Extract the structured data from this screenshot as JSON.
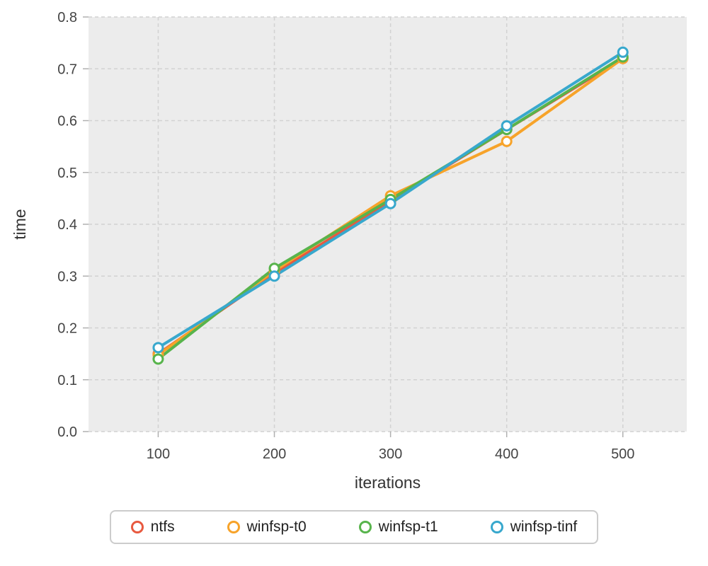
{
  "chart_data": {
    "type": "line",
    "title": "",
    "xlabel": "iterations",
    "ylabel": "time",
    "x": [
      100,
      200,
      300,
      400,
      500
    ],
    "xlim": [
      40,
      555
    ],
    "ylim": [
      0,
      0.8
    ],
    "x_ticks": [
      100,
      200,
      300,
      400,
      500
    ],
    "x_tick_labels": [
      "100",
      "200",
      "300",
      "400",
      "500"
    ],
    "y_ticks": [
      0.0,
      0.1,
      0.2,
      0.3,
      0.4,
      0.5,
      0.6,
      0.7,
      0.8
    ],
    "y_tick_labels": [
      "0.0",
      "0.1",
      "0.2",
      "0.3",
      "0.4",
      "0.5",
      "0.6",
      "0.7",
      "0.8"
    ],
    "grid": true,
    "grid_style": "dashed",
    "legend_position": "bottom",
    "plot_bg": "#ececec",
    "grid_color": "#d2d2d2",
    "tick_color": "#b0b0b0",
    "marker_fill": "#ffffff",
    "series": [
      {
        "name": "ntfs",
        "color": "#e8593f",
        "values": [
          0.15,
          0.305,
          0.445,
          0.583,
          0.72
        ]
      },
      {
        "name": "winfsp-t0",
        "color": "#f7a32a",
        "values": [
          0.148,
          0.31,
          0.455,
          0.56,
          0.72
        ]
      },
      {
        "name": "winfsp-t1",
        "color": "#58b44c",
        "values": [
          0.14,
          0.315,
          0.448,
          0.583,
          0.723
        ]
      },
      {
        "name": "winfsp-tinf",
        "color": "#38a8cd",
        "values": [
          0.162,
          0.3,
          0.44,
          0.59,
          0.732
        ]
      }
    ]
  }
}
